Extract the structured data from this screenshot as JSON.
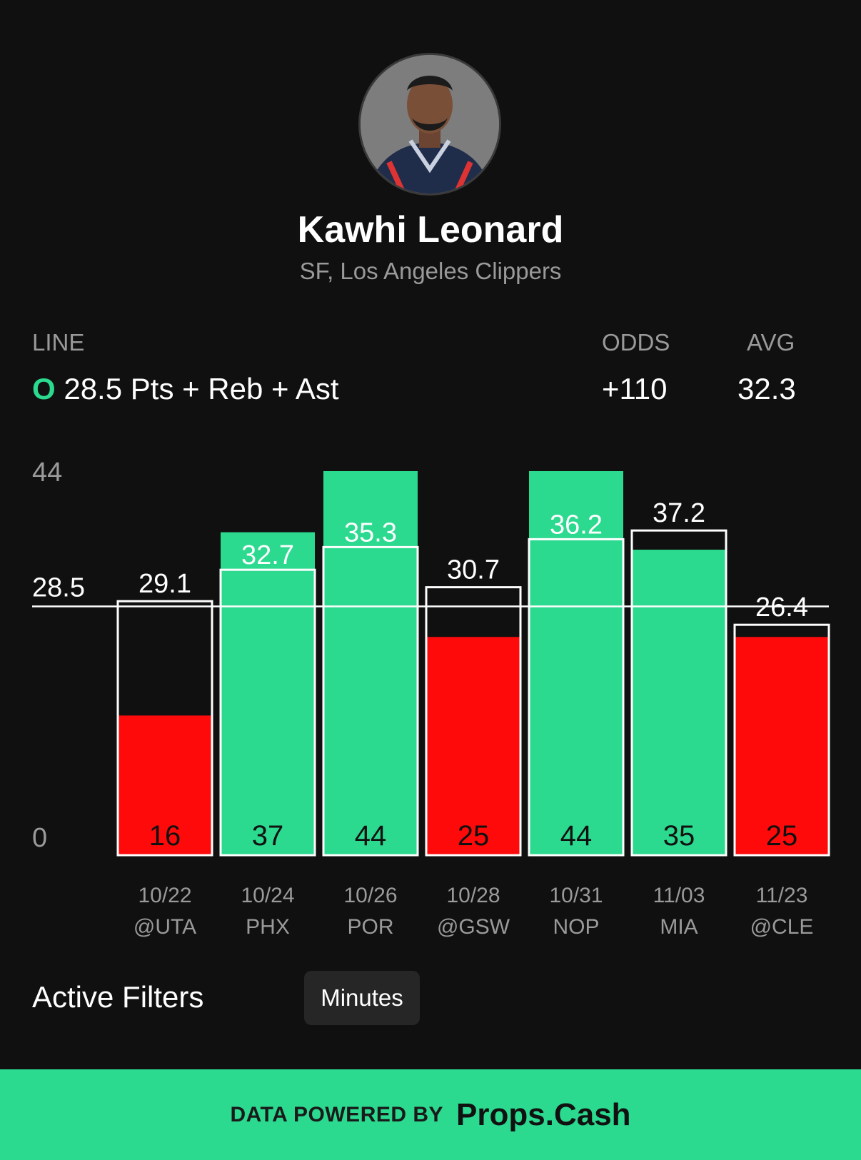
{
  "player": {
    "name": "Kawhi Leonard",
    "team": "SF, Los Angeles Clippers"
  },
  "line": {
    "label": "LINE",
    "direction": "O",
    "value": "28.5 Pts + Reb + Ast",
    "odds_label": "ODDS",
    "odds": "+110",
    "avg_label": "AVG",
    "avg": "32.3"
  },
  "chart_data": {
    "type": "bar",
    "ylim": [
      0,
      44
    ],
    "y_ticks": [
      "44",
      "0"
    ],
    "line_value": 28.5,
    "line_label": "28.5",
    "categories": [
      {
        "date": "10/22",
        "opponent": "@UTA"
      },
      {
        "date": "10/24",
        "opponent": "PHX"
      },
      {
        "date": "10/26",
        "opponent": "POR"
      },
      {
        "date": "10/28",
        "opponent": "@GSW"
      },
      {
        "date": "10/31",
        "opponent": "NOP"
      },
      {
        "date": "11/03",
        "opponent": "MIA"
      },
      {
        "date": "11/23",
        "opponent": "@CLE"
      }
    ],
    "series": [
      {
        "values": [
          16,
          37,
          44,
          25,
          44,
          35,
          25
        ]
      },
      {
        "values": [
          29.1,
          32.7,
          35.3,
          30.7,
          36.2,
          37.2,
          26.4
        ]
      }
    ],
    "colors": {
      "over": "#2bd98f",
      "under": "#ff0a0a",
      "outline": "#ffffff",
      "line": "#ffffff"
    }
  },
  "filters": {
    "label": "Active Filters",
    "chips": [
      "Minutes"
    ]
  },
  "footer": {
    "prefix": "DATA POWERED BY",
    "brand": "Props.Cash"
  }
}
